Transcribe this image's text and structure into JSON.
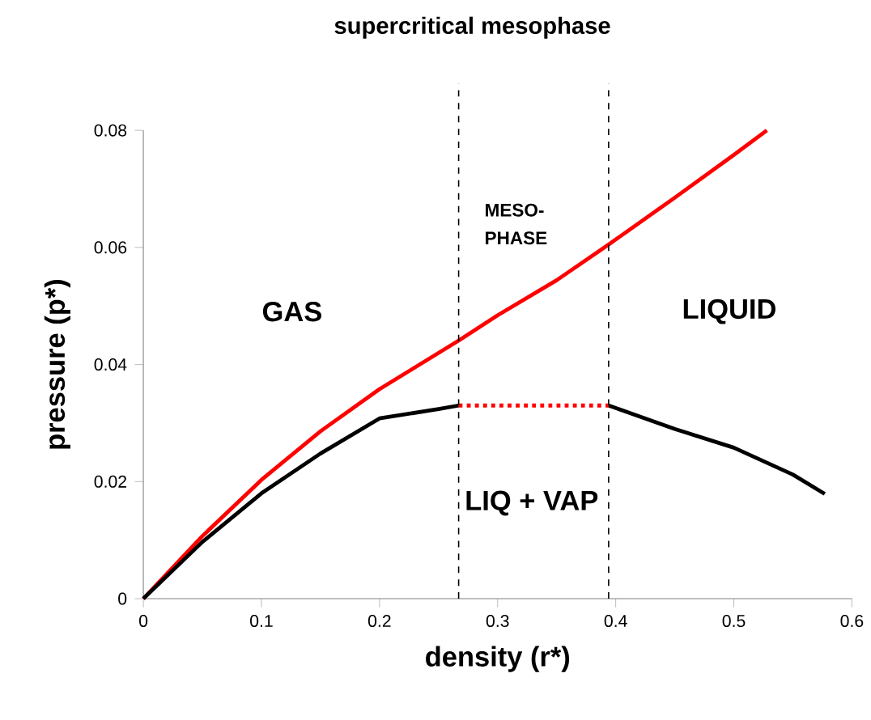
{
  "chart_data": {
    "type": "line",
    "title": "supercritical mesophase",
    "xlabel": "density (r*)",
    "ylabel": "pressure (p*)",
    "xlim": [
      0,
      0.6
    ],
    "ylim": [
      0,
      0.08
    ],
    "xticks": [
      0,
      0.1,
      0.2,
      0.3,
      0.4,
      0.5,
      0.6
    ],
    "yticks": [
      0,
      0.02,
      0.04,
      0.06,
      0.08
    ],
    "grid": false,
    "series": [
      {
        "color": "#ff0000",
        "x": [
          0,
          0.05,
          0.1,
          0.15,
          0.2,
          0.267,
          0.3,
          0.35,
          0.394,
          0.45,
          0.5,
          0.528
        ],
        "values": [
          0,
          0.0107,
          0.0203,
          0.0286,
          0.0358,
          0.0441,
          0.0484,
          0.0544,
          0.0605,
          0.0685,
          0.0758,
          0.08
        ]
      },
      {
        "color": "#000000",
        "x": [
          0,
          0.05,
          0.1,
          0.15,
          0.2,
          0.25,
          0.267
        ],
        "values": [
          0,
          0.0097,
          0.018,
          0.0248,
          0.0308,
          0.0324,
          0.033
        ]
      },
      {
        "color": "#000000",
        "x": [
          0.394,
          0.45,
          0.5,
          0.55,
          0.577
        ],
        "values": [
          0.033,
          0.029,
          0.0258,
          0.0212,
          0.0179
        ]
      },
      {
        "color": "#ff0000",
        "line_style": "dotted",
        "x": [
          0.267,
          0.394
        ],
        "values": [
          0.033,
          0.033
        ]
      }
    ],
    "ref_lines": [
      {
        "axis": "x",
        "value": 0.267,
        "line_style": "dashed",
        "color": "#000000"
      },
      {
        "axis": "x",
        "value": 0.394,
        "line_style": "dashed",
        "color": "#000000"
      }
    ],
    "annotations": [
      "GAS",
      "LIQUID",
      "MESO- PHASE",
      "LIQ + VAP"
    ]
  }
}
